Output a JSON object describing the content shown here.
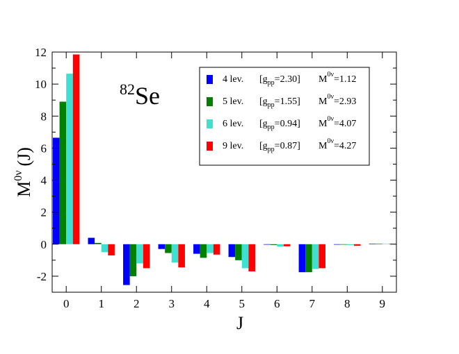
{
  "chart_data": {
    "type": "bar",
    "nucleus": {
      "mass": "82",
      "symbol": "Se"
    },
    "xlabel": "J",
    "ylabel": {
      "main": "M",
      "sup": "0ν",
      "suffix": "(J)"
    },
    "categories": [
      "0",
      "1",
      "2",
      "3",
      "4",
      "5",
      "6",
      "7",
      "8",
      "9"
    ],
    "xlim": [
      -0.4,
      9.4
    ],
    "ylim": [
      -3,
      12
    ],
    "yticks": [
      -2,
      0,
      2,
      4,
      6,
      8,
      10,
      12
    ],
    "grid": false,
    "legend_position": "top-right",
    "series": [
      {
        "name": "4 lev.",
        "gpp": "2.30",
        "m0v": "1.12",
        "color": "#0000ff",
        "values": [
          6.65,
          0.4,
          -2.55,
          -0.3,
          -0.6,
          -0.8,
          -0.03,
          -1.75,
          -0.03,
          0.03
        ]
      },
      {
        "name": "5 lev.",
        "gpp": "1.55",
        "m0v": "2.93",
        "color": "#008000",
        "values": [
          8.9,
          0.08,
          -2.0,
          -0.55,
          -0.85,
          -1.0,
          -0.05,
          -1.75,
          -0.03,
          0.03
        ]
      },
      {
        "name": "6 lev.",
        "gpp": "0.94",
        "m0v": "4.07",
        "color": "#40e0d0",
        "values": [
          10.65,
          -0.5,
          -1.2,
          -1.15,
          -0.55,
          -1.5,
          -0.15,
          -1.55,
          -0.05,
          0.02
        ]
      },
      {
        "name": "9 lev.",
        "gpp": "0.87",
        "m0v": "4.27",
        "color": "#ff0000",
        "values": [
          11.85,
          -0.7,
          -1.5,
          -1.45,
          -0.65,
          -1.7,
          -0.13,
          -1.5,
          -0.1,
          0.02
        ]
      }
    ]
  }
}
